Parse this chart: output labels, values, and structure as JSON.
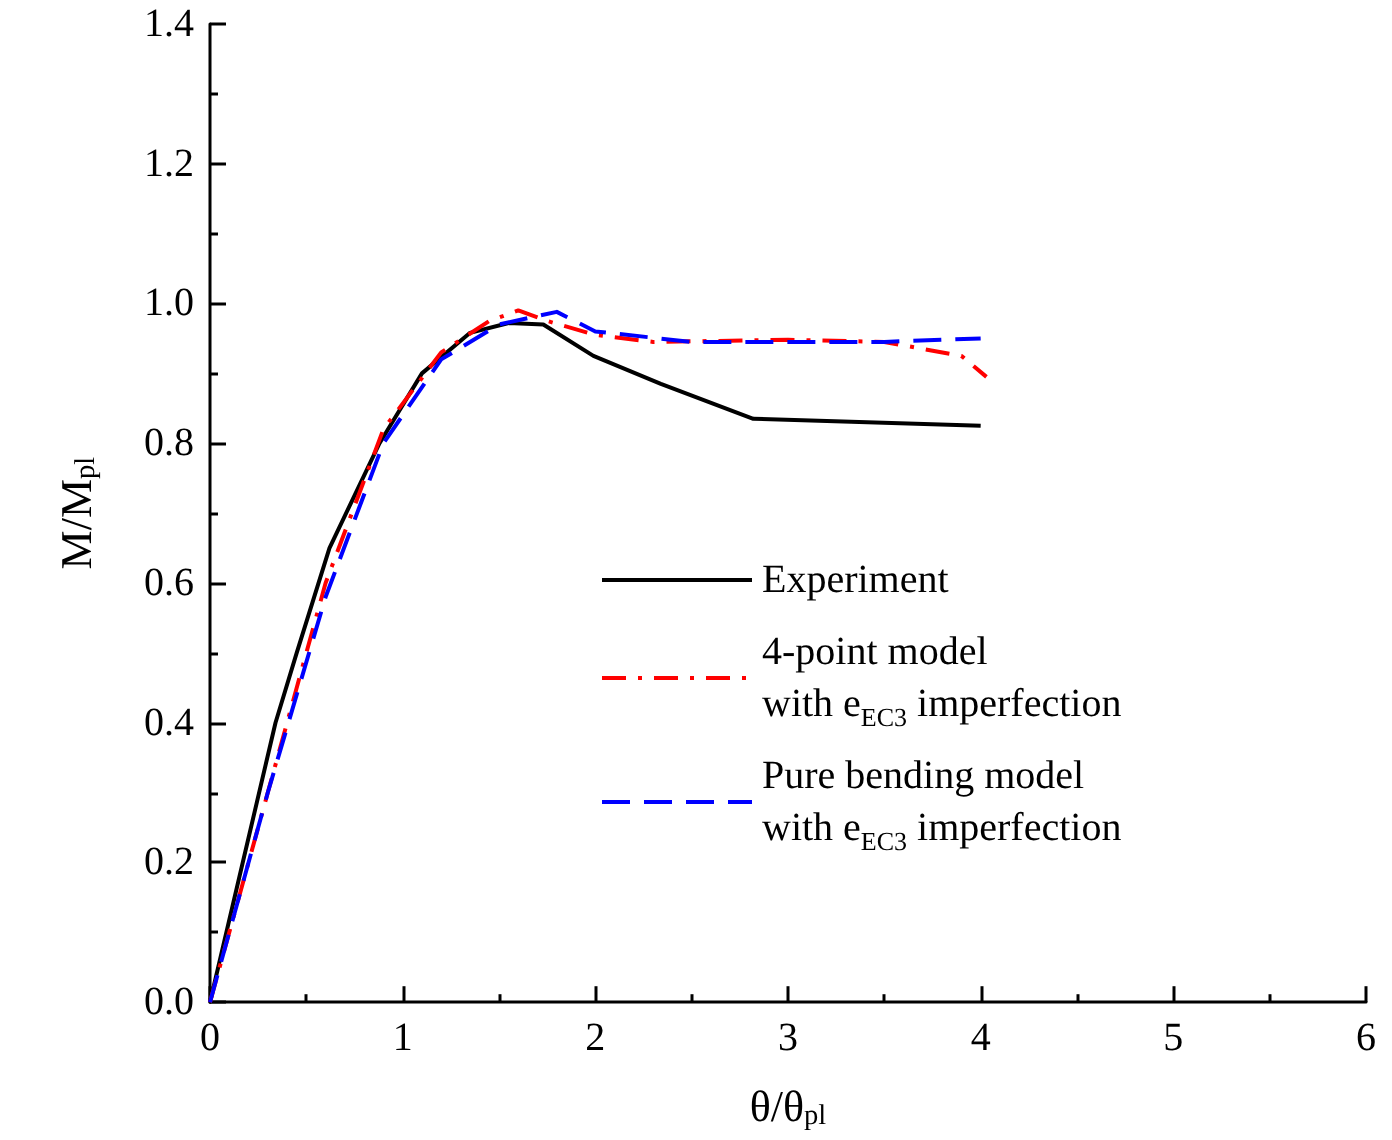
{
  "chart_data": {
    "type": "line",
    "xlabel": "θ/θ$_{pl}$",
    "ylabel": "M/M$_{pl}$",
    "xlim": [
      0,
      6
    ],
    "xticks": [
      0,
      1,
      2,
      3,
      4,
      5,
      6
    ],
    "ylim": [
      0,
      1.4
    ],
    "yticks": [
      {
        "value": 0,
        "label": "0.0"
      },
      0.2,
      0.4,
      0.6,
      0.8,
      {
        "value": 1,
        "label": "1.0"
      },
      1.2,
      1.4
    ],
    "grid": false,
    "legend": "right",
    "marker": "none",
    "series": [
      {
        "name": "Experiment",
        "color": "#000000",
        "line_style": "solid",
        "x": [
          0,
          0.17,
          0.34,
          0.45,
          0.62,
          0.88,
          1.1,
          1.35,
          1.55,
          1.73,
          1.99,
          2.34,
          2.82,
          4.0
        ],
        "values": [
          0,
          0.2,
          0.4,
          0.5,
          0.65,
          0.8,
          0.9,
          0.958,
          0.972,
          0.97,
          0.925,
          0.885,
          0.835,
          0.825
        ]
      },
      {
        "name": "4-point model\nwith e$_{EC3}$ imperfection",
        "color": "#ff0000",
        "line_style": "dashdot",
        "x": [
          0,
          0.3,
          0.6,
          0.9,
          1.2,
          1.45,
          1.6,
          1.75,
          2.0,
          2.3,
          3.0,
          3.5,
          3.9,
          4.03
        ],
        "values": [
          0,
          0.3,
          0.6,
          0.82,
          0.93,
          0.975,
          0.99,
          0.975,
          0.955,
          0.945,
          0.948,
          0.945,
          0.925,
          0.895
        ]
      },
      {
        "name": "Pure bending model\nwith e$_{EC3}$ imperfection",
        "color": "#0000ff",
        "line_style": "dashed",
        "x": [
          0,
          0.3,
          0.6,
          0.9,
          1.2,
          1.5,
          1.8,
          2.0,
          2.5,
          3.0,
          3.5,
          4.0
        ],
        "values": [
          0,
          0.3,
          0.58,
          0.8,
          0.92,
          0.97,
          0.988,
          0.96,
          0.945,
          0.945,
          0.945,
          0.95
        ]
      }
    ]
  }
}
